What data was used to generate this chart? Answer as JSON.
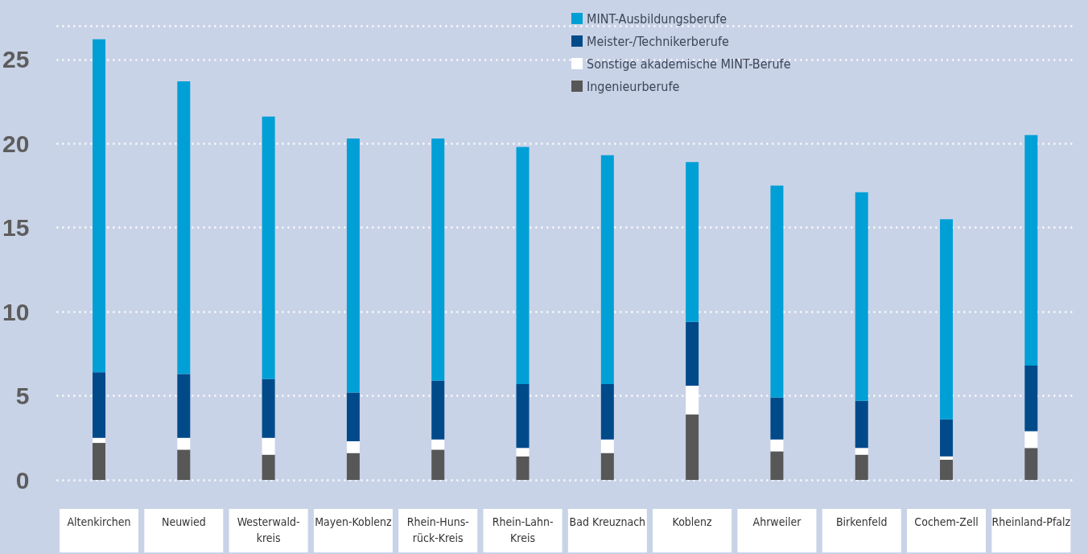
{
  "chart_data": {
    "type": "bar",
    "stacked": true,
    "categories": [
      "Altenkirchen",
      "Neuwied",
      "Westerwald-\nkreis",
      "Mayen-Koblenz",
      "Rhein-Huns-\nrück-Kreis",
      "Rhein-Lahn-\nKreis",
      "Bad Kreuznach",
      "Koblenz",
      "Ahrweiler",
      "Birkenfeld",
      "Cochem-Zell",
      "Rheinland-Pfalz"
    ],
    "series": [
      {
        "name": "Ingenieurberufe",
        "color": "#575757",
        "values": [
          2.2,
          1.8,
          1.5,
          1.6,
          1.8,
          1.4,
          1.6,
          3.9,
          1.7,
          1.5,
          1.2,
          1.9
        ]
      },
      {
        "name": "Sonstige akademische MINT-Berufe",
        "color": "#ffffff",
        "values": [
          0.3,
          0.7,
          1.0,
          0.7,
          0.6,
          0.5,
          0.8,
          1.7,
          0.7,
          0.4,
          0.2,
          1.0
        ]
      },
      {
        "name": "Meister-/Technikerberufe",
        "color": "#004a8a",
        "values": [
          3.9,
          3.8,
          3.5,
          2.9,
          3.5,
          3.8,
          3.3,
          3.8,
          2.5,
          2.8,
          2.2,
          3.9
        ]
      },
      {
        "name": "MINT-Ausbildungsberufe",
        "color": "#009fd6",
        "values": [
          19.8,
          17.4,
          15.6,
          15.1,
          14.4,
          14.1,
          13.6,
          9.5,
          12.6,
          12.4,
          11.9,
          13.7
        ]
      }
    ],
    "ylim": [
      0,
      27
    ],
    "yticks": [
      0,
      5,
      10,
      15,
      20,
      25
    ],
    "grid": "y",
    "legend": "top right"
  }
}
